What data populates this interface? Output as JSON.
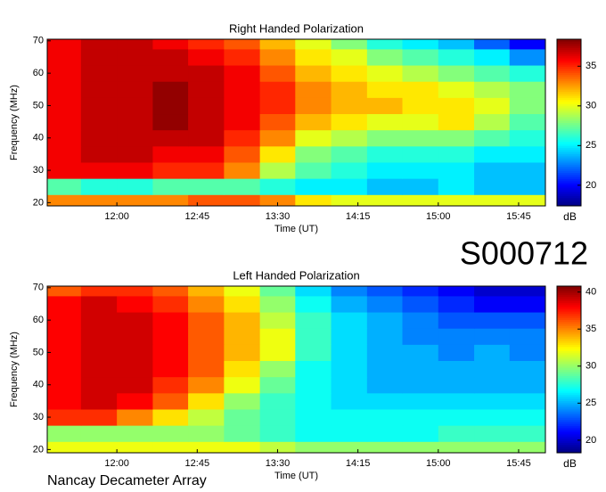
{
  "chart_data": [
    {
      "type": "heatmap",
      "title": "Right Handed Polarization",
      "x_label": "Time (UT)",
      "y_label": "Frequency (MHz)",
      "colorbar_label": "dB",
      "colormap": "jet",
      "x": [
        11.5,
        11.83,
        12.17,
        12.5,
        12.83,
        13.17,
        13.5,
        13.83,
        14.17,
        14.5,
        14.83,
        15.17,
        15.5,
        15.83
      ],
      "y": [
        20,
        25,
        30,
        35,
        40,
        45,
        50,
        55,
        60,
        65,
        70
      ],
      "z": [
        [
          33,
          33,
          33,
          33,
          34,
          34,
          33,
          31,
          30,
          30,
          30,
          30,
          30,
          30
        ],
        [
          27,
          26,
          26,
          27,
          27,
          27,
          26,
          25,
          25,
          24,
          24,
          25,
          24,
          24
        ],
        [
          36,
          36,
          36,
          35,
          35,
          33,
          29,
          27,
          26,
          25,
          25,
          25,
          24,
          24
        ],
        [
          36,
          37,
          37,
          36,
          36,
          34,
          31,
          28,
          27,
          26,
          26,
          26,
          25,
          25
        ],
        [
          36,
          37,
          37,
          37,
          37,
          35,
          33,
          30,
          29,
          28,
          28,
          28,
          27,
          26
        ],
        [
          36,
          37,
          37,
          38,
          37,
          36,
          34,
          32,
          31,
          30,
          30,
          31,
          29,
          27
        ],
        [
          36,
          37,
          37,
          38,
          37,
          36,
          35,
          33,
          32,
          32,
          31,
          31,
          30,
          28
        ],
        [
          36,
          37,
          37,
          38,
          37,
          36,
          35,
          33,
          32,
          31,
          31,
          30,
          29,
          28
        ],
        [
          36,
          37,
          37,
          37,
          37,
          36,
          34,
          32,
          31,
          30,
          29,
          28,
          27,
          26
        ],
        [
          36,
          37,
          37,
          37,
          36,
          35,
          33,
          31,
          30,
          28,
          27,
          26,
          25,
          23
        ],
        [
          36,
          37,
          37,
          36,
          35,
          34,
          32,
          30,
          28,
          26,
          25,
          24,
          22,
          20
        ]
      ],
      "xlim": [
        11.35,
        16.0
      ],
      "ylim": [
        19,
        70.5
      ],
      "xticks": [
        {
          "value": 12,
          "label": "12:00"
        },
        {
          "value": 12.75,
          "label": "12:45"
        },
        {
          "value": 13.5,
          "label": "13:30"
        },
        {
          "value": 14.25,
          "label": "14:15"
        },
        {
          "value": 15,
          "label": "15:00"
        },
        {
          "value": 15.75,
          "label": "15:45"
        }
      ],
      "yticks": [
        20,
        30,
        40,
        50,
        60,
        70
      ],
      "clim": [
        17.4,
        38.4
      ],
      "cticks": [
        20,
        25,
        30,
        35
      ]
    },
    {
      "type": "heatmap",
      "title": "Left Handed Polarization",
      "x_label": "Time (UT)",
      "y_label": "Frequency (MHz)",
      "colorbar_label": "dB",
      "colormap": "jet",
      "x": [
        11.5,
        11.83,
        12.17,
        12.5,
        12.83,
        13.17,
        13.5,
        13.83,
        14.17,
        14.5,
        14.83,
        15.17,
        15.5,
        15.83
      ],
      "y": [
        20,
        25,
        30,
        35,
        40,
        45,
        50,
        55,
        60,
        65,
        70
      ],
      "z": [
        [
          32,
          32,
          32,
          32,
          32,
          32,
          31,
          30,
          30,
          30,
          30,
          30,
          30,
          30
        ],
        [
          30,
          30,
          30,
          30,
          30,
          29,
          28,
          27,
          27,
          27,
          27,
          28,
          28,
          28
        ],
        [
          37,
          37,
          35,
          33,
          31,
          29,
          28,
          27,
          27,
          27,
          27,
          27,
          27,
          27
        ],
        [
          38,
          39,
          38,
          36,
          33,
          30,
          28,
          27,
          26,
          26,
          26,
          26,
          26,
          26
        ],
        [
          38,
          39,
          39,
          37,
          35,
          32,
          29,
          27,
          26,
          25,
          25,
          25,
          25,
          25
        ],
        [
          38,
          39,
          39,
          38,
          36,
          33,
          30,
          27,
          26,
          25,
          25,
          25,
          25,
          25
        ],
        [
          38,
          39,
          39,
          38,
          36,
          34,
          32,
          28,
          26,
          25,
          25,
          24,
          25,
          24
        ],
        [
          38,
          39,
          39,
          38,
          36,
          34,
          32,
          28,
          26,
          25,
          24,
          24,
          24,
          24
        ],
        [
          38,
          39,
          39,
          38,
          36,
          34,
          31,
          28,
          26,
          25,
          24,
          23,
          23,
          23
        ],
        [
          38,
          39,
          38,
          37,
          35,
          33,
          30,
          27,
          25,
          24,
          23,
          22,
          21,
          21
        ],
        [
          36,
          37,
          37,
          36,
          34,
          32,
          29,
          26,
          24,
          23,
          22,
          21,
          20,
          20
        ]
      ],
      "xlim": [
        11.35,
        16.0
      ],
      "ylim": [
        19,
        70.5
      ],
      "xticks": [
        {
          "value": 12,
          "label": "12:00"
        },
        {
          "value": 12.75,
          "label": "12:45"
        },
        {
          "value": 13.5,
          "label": "13:30"
        },
        {
          "value": 14.25,
          "label": "14:15"
        },
        {
          "value": 15,
          "label": "15:00"
        },
        {
          "value": 15.75,
          "label": "15:45"
        }
      ],
      "yticks": [
        20,
        30,
        40,
        50,
        60,
        70
      ],
      "clim": [
        18.3,
        40.8
      ],
      "cticks": [
        20,
        25,
        30,
        35,
        40
      ]
    }
  ],
  "station": "S000712",
  "footer": "Nancay Decameter Array"
}
